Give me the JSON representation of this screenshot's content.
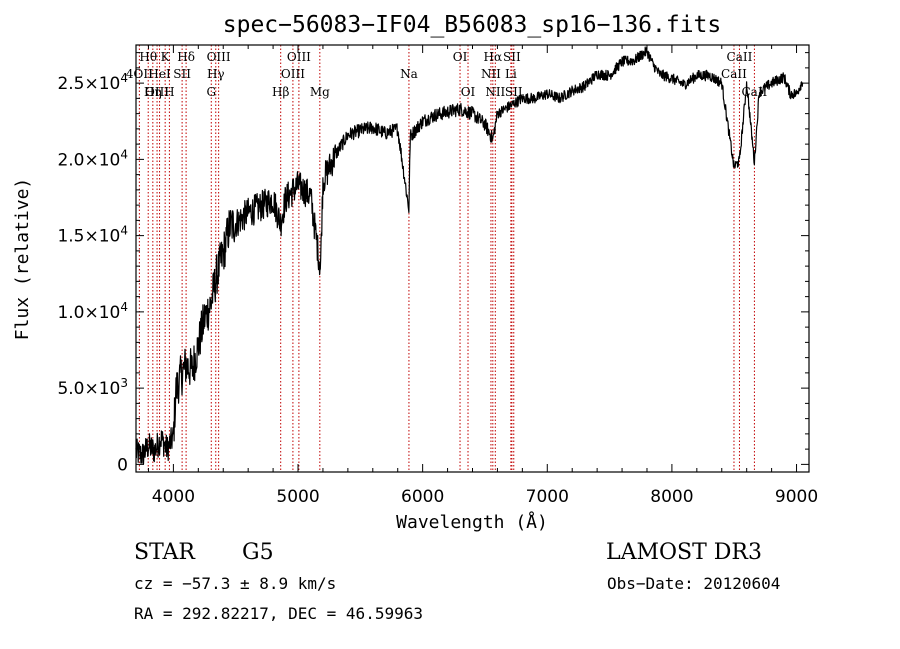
{
  "chart_data": {
    "type": "line",
    "title": "spec−56083−IF04_B56083_sp16−136.fits",
    "xlabel": "Wavelength (Å)",
    "ylabel": "Flux (relative)",
    "xlim": [
      3700,
      9100
    ],
    "ylim": [
      -500,
      27500
    ],
    "x_ticks": [
      {
        "value": 4000,
        "label": "4000"
      },
      {
        "value": 5000,
        "label": "5000"
      },
      {
        "value": 6000,
        "label": "6000"
      },
      {
        "value": 7000,
        "label": "7000"
      },
      {
        "value": 8000,
        "label": "8000"
      },
      {
        "value": 9000,
        "label": "9000"
      }
    ],
    "y_ticks": [
      {
        "value": 0,
        "mantissa": "0",
        "exp": ""
      },
      {
        "value": 5000,
        "mantissa": "5.0×10",
        "exp": "3"
      },
      {
        "value": 10000,
        "mantissa": "1.0×10",
        "exp": "4"
      },
      {
        "value": 15000,
        "mantissa": "1.5×10",
        "exp": "4"
      },
      {
        "value": 20000,
        "mantissa": "2.0×10",
        "exp": "4"
      },
      {
        "value": 25000,
        "mantissa": "2.5×10",
        "exp": "4"
      }
    ],
    "spectrum": {
      "name": "flux",
      "x": [
        3700,
        3750,
        3800,
        3850,
        3900,
        3950,
        4000,
        4020,
        4050,
        4100,
        4150,
        4200,
        4250,
        4300,
        4350,
        4400,
        4450,
        4500,
        4600,
        4700,
        4800,
        4860,
        4900,
        5000,
        5100,
        5180,
        5200,
        5300,
        5400,
        5500,
        5600,
        5700,
        5800,
        5890,
        5900,
        6000,
        6100,
        6200,
        6300,
        6400,
        6500,
        6563,
        6600,
        6700,
        6800,
        6900,
        7000,
        7100,
        7200,
        7300,
        7400,
        7500,
        7600,
        7700,
        7800,
        7850,
        7900,
        8000,
        8100,
        8200,
        8300,
        8400,
        8498,
        8542,
        8600,
        8662,
        8700,
        8800,
        8900,
        8950,
        9000,
        9050
      ],
      "y": [
        800,
        600,
        1200,
        900,
        1700,
        1000,
        1800,
        4800,
        5600,
        6500,
        6200,
        7800,
        9600,
        10500,
        12500,
        13800,
        15600,
        15800,
        16500,
        16900,
        17400,
        15800,
        17400,
        18300,
        17600,
        12800,
        18600,
        20300,
        21600,
        21900,
        22100,
        21700,
        22000,
        16700,
        21500,
        22500,
        22900,
        23100,
        23300,
        23000,
        22300,
        21300,
        23000,
        23500,
        24000,
        24000,
        24300,
        24000,
        24500,
        24800,
        25600,
        25500,
        26400,
        26500,
        27100,
        26200,
        25600,
        25300,
        24900,
        25500,
        25500,
        25000,
        19500,
        19900,
        25000,
        19800,
        24400,
        25000,
        25400,
        24300,
        24300,
        25200
      ]
    },
    "line_markers": [
      {
        "label": "Hθ",
        "x": 3798,
        "row": 0
      },
      {
        "label": "K",
        "x": 3934,
        "row": 0
      },
      {
        "label": "Hδ",
        "x": 4102,
        "row": 0
      },
      {
        "label": "OIII",
        "x": 4363,
        "row": 0
      },
      {
        "label": "OIII",
        "x": 5007,
        "row": 0
      },
      {
        "label": "OI",
        "x": 6300,
        "row": 0
      },
      {
        "label": "Hα",
        "x": 6563,
        "row": 0
      },
      {
        "label": "SII",
        "x": 6716,
        "row": 0
      },
      {
        "label": "CaII",
        "x": 8542,
        "row": 0
      },
      {
        "label": "4OII",
        "x": 3727,
        "row": 1
      },
      {
        "label": "HeI",
        "x": 3889,
        "row": 1
      },
      {
        "label": "SII",
        "x": 4070,
        "row": 1
      },
      {
        "label": "Hγ",
        "x": 4340,
        "row": 1
      },
      {
        "label": "OIII",
        "x": 4959,
        "row": 1
      },
      {
        "label": "Na",
        "x": 5890,
        "row": 1
      },
      {
        "label": "NII",
        "x": 6548,
        "row": 1
      },
      {
        "label": "Li",
        "x": 6708,
        "row": 1
      },
      {
        "label": "CaII",
        "x": 8498,
        "row": 1
      },
      {
        "label": "OIII",
        "x": 3869,
        "row": 2
      },
      {
        "label": "Hη",
        "x": 3835,
        "row": 2
      },
      {
        "label": "H",
        "x": 3968,
        "row": 2
      },
      {
        "label": "G",
        "x": 4304,
        "row": 2
      },
      {
        "label": "Hβ",
        "x": 4861,
        "row": 2
      },
      {
        "label": "Mg",
        "x": 5175,
        "row": 2
      },
      {
        "label": "OI",
        "x": 6364,
        "row": 2
      },
      {
        "label": "NII",
        "x": 6583,
        "row": 2
      },
      {
        "label": "SII",
        "x": 6731,
        "row": 2
      },
      {
        "label": "CaII",
        "x": 8662,
        "row": 2
      }
    ],
    "colors": {
      "line": "#000000",
      "markers": "#c00000",
      "axes": "#000000"
    }
  },
  "footer": {
    "object_class": "STAR",
    "subclass": "G5",
    "survey": "LAMOST DR3",
    "redshift": "cz = −57.3 ± 8.9 km/s",
    "obs_date": "Obs−Date: 20120604",
    "coords": "RA = 292.82217, DEC =  46.59963"
  }
}
